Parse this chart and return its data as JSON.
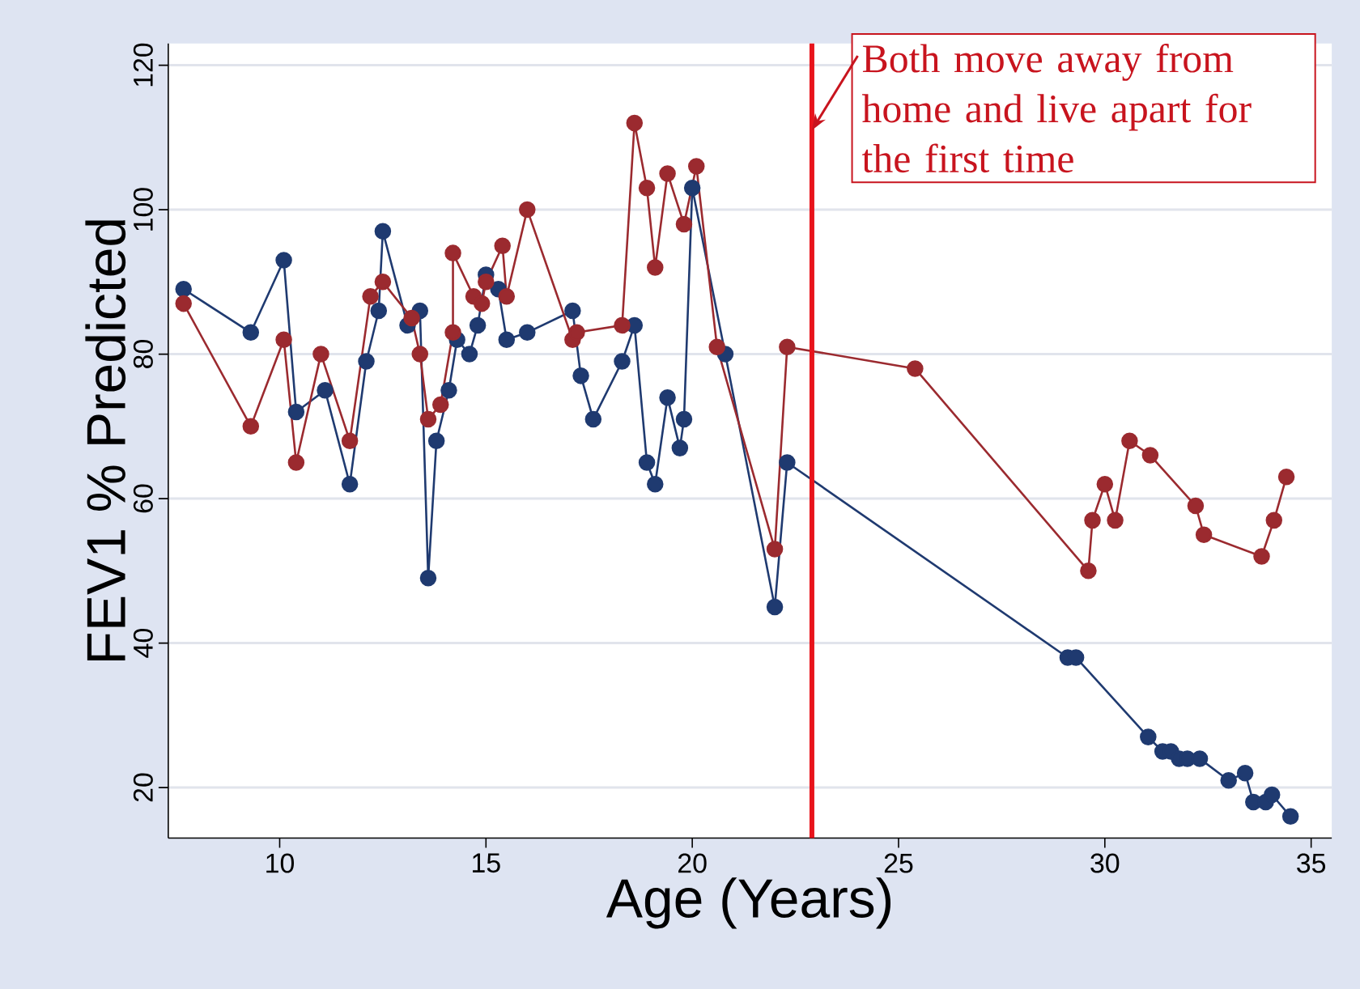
{
  "chart_data": {
    "type": "line",
    "xlabel": "Age (Years)",
    "ylabel": "FEV1 % Predicted",
    "xlim": [
      7.3,
      35.5
    ],
    "xticks": [
      10,
      15,
      20,
      25,
      30,
      35
    ],
    "ylim": [
      13,
      123
    ],
    "yticks": [
      20,
      40,
      60,
      80,
      100,
      120
    ],
    "grid": "y",
    "marker": "circle",
    "line_style": "solid",
    "series": [
      {
        "color": "#1f3a70",
        "x": [
          7.67,
          9.3,
          10.1,
          10.4,
          11.1,
          11.7,
          12.1,
          12.4,
          12.5,
          13.1,
          13.4,
          13.6,
          13.8,
          14.1,
          14.3,
          14.6,
          14.8,
          15.0,
          15.3,
          15.5,
          16.0,
          17.1,
          17.3,
          17.6,
          18.3,
          18.6,
          18.9,
          19.1,
          19.4,
          19.7,
          19.8,
          20.0,
          20.8,
          22.0,
          22.3,
          29.1,
          29.3,
          31.05,
          31.4,
          31.6,
          31.8,
          32.0,
          32.3,
          33.0,
          33.4,
          33.6,
          33.9,
          34.05,
          34.5
        ],
        "values": [
          89,
          83,
          93,
          72,
          75,
          62,
          79,
          86,
          97,
          84,
          86,
          49,
          68,
          75,
          82,
          80,
          84,
          91,
          89,
          82,
          83,
          86,
          77,
          71,
          79,
          84,
          65,
          62,
          74,
          67,
          71,
          103,
          80,
          45,
          65,
          38,
          38,
          27,
          25,
          25,
          24,
          24,
          24,
          21,
          22,
          18,
          18,
          19,
          16
        ]
      },
      {
        "color": "#9b2a2f",
        "x": [
          7.67,
          9.3,
          10.1,
          10.4,
          11.0,
          11.7,
          12.2,
          12.5,
          13.2,
          13.4,
          13.6,
          13.9,
          14.2,
          14.2,
          14.7,
          14.9,
          15.0,
          15.4,
          15.5,
          16.0,
          17.1,
          17.2,
          18.3,
          18.6,
          18.9,
          19.1,
          19.4,
          19.8,
          20.1,
          20.6,
          22.0,
          22.3,
          25.4,
          29.6,
          29.7,
          30.0,
          30.25,
          30.6,
          31.1,
          32.2,
          32.4,
          33.8,
          34.1,
          34.4
        ],
        "values": [
          87,
          70,
          82,
          65,
          80,
          68,
          88,
          90,
          85,
          80,
          71,
          73,
          83,
          94,
          88,
          87,
          90,
          95,
          88,
          100,
          82,
          83,
          84,
          112,
          103,
          92,
          105,
          98,
          106,
          81,
          53,
          81,
          78,
          50,
          57,
          62,
          57,
          68,
          66,
          59,
          55,
          52,
          57,
          63
        ]
      }
    ],
    "ref_lines": [
      {
        "axis": "x",
        "value": 22.9,
        "color": "#e8141c"
      }
    ],
    "annotations": [
      {
        "text": "Both move away from home and live apart for the first time",
        "x": 22.9,
        "y": 111
      }
    ]
  }
}
